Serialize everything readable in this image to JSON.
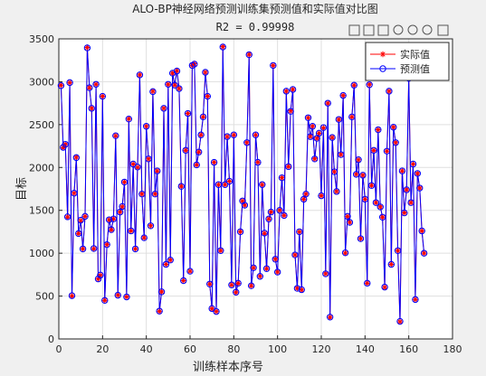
{
  "chart_data": {
    "type": "line",
    "title": "ALO-BP神经网络预测训练集预测值和实际值对比图",
    "subtitle": "R2 = 0.99998",
    "xlabel": "训练样本序号",
    "ylabel": "目标",
    "xlim": [
      0,
      180
    ],
    "xticks": [
      0,
      20,
      40,
      60,
      80,
      100,
      120,
      140,
      160,
      180
    ],
    "ylim": [
      0,
      3500
    ],
    "yticks": [
      0,
      500,
      1000,
      1500,
      2000,
      2500,
      3000,
      3500
    ],
    "grid": true,
    "legend": "upper right",
    "x": [
      1,
      2,
      3,
      4,
      5,
      6,
      7,
      8,
      9,
      10,
      11,
      12,
      13,
      14,
      15,
      16,
      17,
      18,
      19,
      20,
      21,
      22,
      23,
      24,
      25,
      26,
      27,
      28,
      29,
      30,
      31,
      32,
      33,
      34,
      35,
      36,
      37,
      38,
      39,
      40,
      41,
      42,
      43,
      44,
      45,
      46,
      47,
      48,
      49,
      50,
      51,
      52,
      53,
      54,
      55,
      56,
      57,
      58,
      59,
      60,
      61,
      62,
      63,
      64,
      65,
      66,
      67,
      68,
      69,
      70,
      71,
      72,
      73,
      74,
      75,
      76,
      77,
      78,
      79,
      80,
      81,
      82,
      83,
      84,
      85,
      86,
      87,
      88,
      89,
      90,
      91,
      92,
      93,
      94,
      95,
      96,
      97,
      98,
      99,
      100,
      101,
      102,
      103,
      104,
      105,
      106,
      107,
      108,
      109,
      110,
      111,
      112,
      113,
      114,
      115,
      116,
      117,
      118,
      119,
      120,
      121,
      122,
      123,
      124,
      125,
      126,
      127,
      128,
      129,
      130,
      131,
      132,
      133,
      134,
      135,
      136,
      137,
      138,
      139,
      140,
      141,
      142,
      143,
      144,
      145,
      146,
      147,
      148,
      149,
      150,
      151,
      152,
      153,
      154,
      155,
      156,
      157,
      158,
      159,
      160,
      161,
      162,
      163,
      164,
      165,
      166,
      167
    ],
    "series": [
      {
        "name": "实际值",
        "color": "#ff0000",
        "marker": "star",
        "values": [
          2960,
          2230,
          2270,
          1420,
          2990,
          500,
          1700,
          2120,
          1230,
          1380,
          1050,
          1430,
          3400,
          2930,
          2690,
          1050,
          2970,
          700,
          740,
          2830,
          450,
          1100,
          1390,
          1270,
          1400,
          2370,
          510,
          1480,
          1540,
          1830,
          490,
          2570,
          1260,
          2040,
          1050,
          2000,
          3080,
          1690,
          1180,
          2480,
          2100,
          1320,
          2890,
          1690,
          1960,
          320,
          550,
          2690,
          870,
          2970,
          920,
          3100,
          2960,
          3130,
          2920,
          1780,
          680,
          2200,
          2630,
          790,
          3190,
          3210,
          2030,
          2180,
          2380,
          2590,
          3110,
          2830,
          640,
          350,
          2060,
          320,
          1800,
          1030,
          3410,
          1800,
          2360,
          1840,
          630,
          2380,
          540,
          650,
          1250,
          1610,
          1560,
          2290,
          3320,
          620,
          830,
          2380,
          2060,
          730,
          1800,
          1230,
          820,
          1400,
          1480,
          3190,
          930,
          780,
          1500,
          1880,
          1440,
          2890,
          2010,
          2660,
          2910,
          980,
          590,
          1250,
          570,
          1630,
          1690,
          2580,
          2360,
          2480,
          2100,
          2340,
          2400,
          1670,
          2460,
          760,
          2750,
          250,
          2350,
          1950,
          1720,
          2560,
          2150,
          2840,
          1000,
          1430,
          1360,
          2590,
          2960,
          1920,
          2090,
          1170,
          1910,
          1630,
          650,
          2970,
          1790,
          2200,
          1590,
          2440,
          1540,
          1420,
          600,
          2190,
          2890,
          870,
          2470,
          2290,
          1030,
          200,
          1960,
          1470,
          1740,
          3040,
          1590,
          2040,
          460,
          1930,
          1760,
          1260,
          1000
        ]
      },
      {
        "name": "预测值",
        "color": "#0000ff",
        "marker": "circle",
        "values": [
          2955,
          2235,
          2270,
          1425,
          2990,
          505,
          1700,
          2115,
          1230,
          1385,
          1050,
          1430,
          3395,
          2930,
          2690,
          1055,
          2970,
          700,
          745,
          2830,
          450,
          1100,
          1390,
          1275,
          1400,
          2370,
          510,
          1480,
          1545,
          1830,
          490,
          2565,
          1260,
          2040,
          1050,
          2005,
          3080,
          1690,
          1180,
          2480,
          2100,
          1320,
          2885,
          1690,
          1960,
          325,
          550,
          2690,
          870,
          2970,
          920,
          3100,
          2960,
          3125,
          2920,
          1780,
          680,
          2200,
          2630,
          790,
          3190,
          3205,
          2030,
          2180,
          2380,
          2590,
          3110,
          2830,
          640,
          355,
          2060,
          320,
          1800,
          1030,
          3405,
          1800,
          2360,
          1840,
          630,
          2380,
          545,
          650,
          1250,
          1610,
          1560,
          2290,
          3315,
          620,
          830,
          2380,
          2060,
          730,
          1800,
          1235,
          820,
          1400,
          1480,
          3190,
          930,
          780,
          1500,
          1880,
          1440,
          2890,
          2010,
          2655,
          2910,
          980,
          590,
          1250,
          575,
          1630,
          1690,
          2580,
          2360,
          2480,
          2100,
          2340,
          2400,
          1670,
          2465,
          760,
          2750,
          255,
          2350,
          1950,
          1720,
          2560,
          2150,
          2840,
          1005,
          1430,
          1360,
          2590,
          2960,
          1920,
          2090,
          1170,
          1910,
          1630,
          650,
          2965,
          1790,
          2200,
          1590,
          2440,
          1540,
          1420,
          605,
          2190,
          2890,
          870,
          2470,
          2290,
          1030,
          205,
          1960,
          1470,
          1740,
          3040,
          1590,
          2040,
          460,
          1930,
          1760,
          1260,
          1000
        ]
      }
    ]
  }
}
